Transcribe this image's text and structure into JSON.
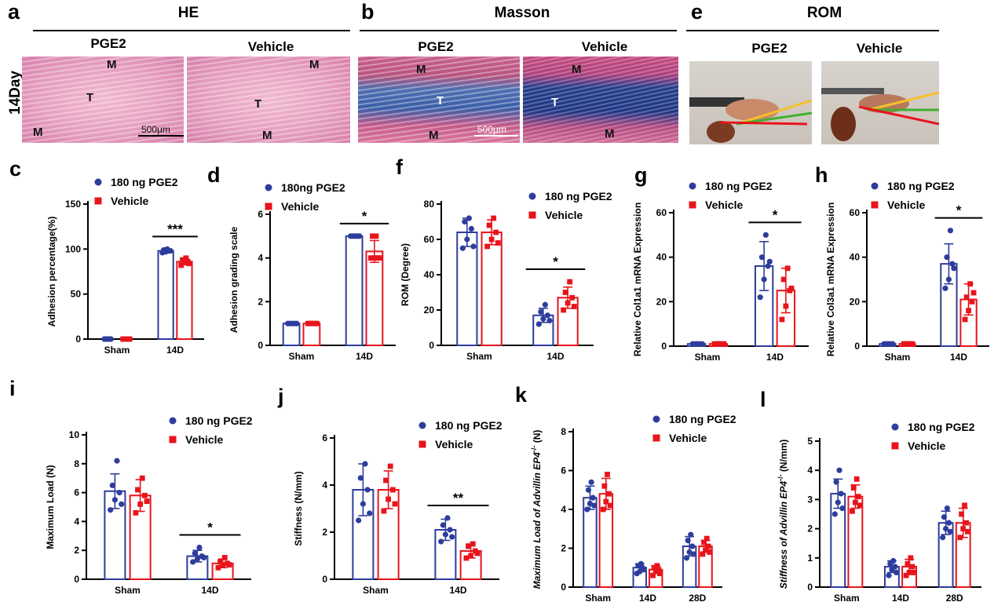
{
  "panels": {
    "a": {
      "label": "a",
      "title": "HE",
      "images": [
        "PGE2",
        "Vehicle"
      ],
      "scale_bar": "500μm"
    },
    "b": {
      "label": "b",
      "title": "Masson",
      "images": [
        "PGE2",
        "Vehicle"
      ],
      "scale_bar": "500μm"
    },
    "e": {
      "label": "e",
      "title": "ROM",
      "images": [
        "PGE2",
        "Vehicle"
      ]
    },
    "day_label": "14Day",
    "tissue_labels": {
      "muscle": "M",
      "tendon": "T"
    }
  },
  "colors": {
    "pge2": "#2e3d9c",
    "vehicle": "#e8141c",
    "axis": "#000000"
  },
  "chart_data": [
    {
      "id": "c",
      "label": "c",
      "type": "bar",
      "categories": [
        "Sham",
        "14D"
      ],
      "series": [
        {
          "name": "180 ng PGE2",
          "values": [
            0,
            98
          ],
          "sd": [
            0.5,
            2
          ],
          "points": [
            [
              0,
              0,
              0,
              0,
              0
            ],
            [
              96,
              97,
              98,
              99,
              100,
              98
            ]
          ]
        },
        {
          "name": "Vehicle",
          "values": [
            0,
            86
          ],
          "sd": [
            0.5,
            3.5
          ],
          "points": [
            [
              0,
              0,
              0,
              0,
              0
            ],
            [
              82,
              85,
              86,
              88,
              90,
              84
            ]
          ]
        }
      ],
      "ylabel": "Adhesion percentage(%)",
      "ylim": [
        0,
        150
      ],
      "yticks": [
        0,
        50,
        100,
        150
      ],
      "sig": [
        {
          "cat": 1,
          "text": "***"
        }
      ]
    },
    {
      "id": "d",
      "label": "d",
      "type": "bar",
      "categories": [
        "Sham",
        "14D"
      ],
      "series": [
        {
          "name": "180ng PGE2",
          "values": [
            1,
            5
          ],
          "sd": [
            0,
            0
          ],
          "points": [
            [
              1,
              1,
              1,
              1,
              1,
              1
            ],
            [
              5,
              5,
              5,
              5,
              5,
              5
            ]
          ]
        },
        {
          "name": "Vehicle",
          "values": [
            1,
            4.3
          ],
          "sd": [
            0,
            0.5
          ],
          "points": [
            [
              1,
              1,
              1,
              1,
              1,
              1
            ],
            [
              4,
              4,
              4,
              5,
              5,
              4
            ]
          ]
        }
      ],
      "ylabel": "Adhesion grading scale",
      "ylim": [
        0,
        6
      ],
      "yticks": [
        0,
        2,
        4,
        6
      ],
      "sig": [
        {
          "cat": 1,
          "text": "*"
        }
      ]
    },
    {
      "id": "f",
      "label": "f",
      "type": "bar",
      "categories": [
        "Sham",
        "14D"
      ],
      "series": [
        {
          "name": "180 ng PGE2",
          "values": [
            64,
            17
          ],
          "sd": [
            8,
            4
          ],
          "points": [
            [
              55,
              60,
              66,
              70,
              72,
              56
            ],
            [
              12,
              15,
              17,
              19,
              23,
              14
            ]
          ]
        },
        {
          "name": "Vehicle",
          "values": [
            64,
            27
          ],
          "sd": [
            7,
            6
          ],
          "points": [
            [
              56,
              60,
              64,
              68,
              72,
              58
            ],
            [
              20,
              24,
              27,
              30,
              36,
              22
            ]
          ]
        }
      ],
      "ylabel": "ROM (Degree)",
      "ylim": [
        0,
        80
      ],
      "yticks": [
        0,
        20,
        40,
        60,
        80
      ],
      "sig": [
        {
          "cat": 1,
          "text": "*"
        }
      ]
    },
    {
      "id": "g",
      "label": "g",
      "type": "bar",
      "categories": [
        "Sham",
        "14D"
      ],
      "series": [
        {
          "name": "180 ng PGE2",
          "values": [
            1,
            36
          ],
          "sd": [
            0.3,
            11
          ],
          "points": [
            [
              1,
              1,
              1,
              1,
              1,
              1
            ],
            [
              22,
              30,
              36,
              40,
              50,
              38
            ]
          ]
        },
        {
          "name": "Vehicle",
          "values": [
            1,
            25
          ],
          "sd": [
            0.3,
            10
          ],
          "points": [
            [
              1,
              1,
              1,
              1,
              1,
              1
            ],
            [
              12,
              18,
              25,
              30,
              35,
              26
            ]
          ]
        }
      ],
      "ylabel": "Relative Col1a1 mRNA Expression",
      "ylim": [
        0,
        60
      ],
      "yticks": [
        0,
        20,
        40,
        60
      ],
      "sig": [
        {
          "cat": 1,
          "text": "*"
        }
      ]
    },
    {
      "id": "h",
      "label": "h",
      "type": "bar",
      "categories": [
        "Sham",
        "14D"
      ],
      "series": [
        {
          "name": "180 ng PGE2",
          "values": [
            1,
            37
          ],
          "sd": [
            0.3,
            9
          ],
          "points": [
            [
              1,
              1,
              1,
              1,
              1,
              1
            ],
            [
              26,
              30,
              37,
              40,
              52,
              35
            ]
          ]
        },
        {
          "name": "Vehicle",
          "values": [
            1,
            21
          ],
          "sd": [
            0.3,
            7
          ],
          "points": [
            [
              1,
              1,
              1,
              1,
              1,
              1
            ],
            [
              12,
              16,
              20,
              22,
              28,
              24
            ]
          ]
        }
      ],
      "ylabel": "Relative Col3a1 mRNA Expression",
      "ylim": [
        0,
        60
      ],
      "yticks": [
        0,
        20,
        40,
        60
      ],
      "sig": [
        {
          "cat": 1,
          "text": "*"
        }
      ]
    },
    {
      "id": "i",
      "label": "i",
      "type": "bar",
      "categories": [
        "Sham",
        "14D"
      ],
      "series": [
        {
          "name": "180 ng PGE2",
          "values": [
            6.1,
            1.6
          ],
          "sd": [
            1.2,
            0.4
          ],
          "points": [
            [
              4.8,
              5.5,
              6.0,
              6.5,
              8.2,
              5.2
            ],
            [
              1.2,
              1.4,
              1.6,
              1.8,
              2.2,
              1.5
            ]
          ]
        },
        {
          "name": "Vehicle",
          "values": [
            5.8,
            1.1
          ],
          "sd": [
            1.1,
            0.3
          ],
          "points": [
            [
              4.6,
              5.2,
              5.8,
              6.2,
              7.0,
              5.4
            ],
            [
              0.8,
              1.0,
              1.1,
              1.2,
              1.5,
              1.0
            ]
          ]
        }
      ],
      "ylabel": "Maximum Load  (N)",
      "ylim": [
        0,
        10
      ],
      "yticks": [
        0,
        2,
        4,
        6,
        8,
        10
      ],
      "sig": [
        {
          "cat": 1,
          "text": "*"
        }
      ]
    },
    {
      "id": "j",
      "label": "j",
      "type": "bar",
      "categories": [
        "Sham",
        "14D"
      ],
      "series": [
        {
          "name": "180 ng PGE2",
          "values": [
            3.8,
            2.1
          ],
          "sd": [
            1.1,
            0.45
          ],
          "points": [
            [
              2.5,
              3.2,
              3.8,
              4.3,
              4.9,
              2.8
            ],
            [
              1.6,
              1.9,
              2.1,
              2.3,
              2.6,
              1.8
            ]
          ]
        },
        {
          "name": "Vehicle",
          "values": [
            3.8,
            1.2
          ],
          "sd": [
            0.8,
            0.3
          ],
          "points": [
            [
              2.9,
              3.4,
              3.8,
              4.2,
              4.8,
              3.2
            ],
            [
              0.9,
              1.0,
              1.2,
              1.4,
              1.5,
              1.1
            ]
          ]
        }
      ],
      "ylabel": "Stiffness  (N/mm)",
      "ylim": [
        0,
        6
      ],
      "yticks": [
        0,
        2,
        4,
        6
      ],
      "sig": [
        {
          "cat": 1,
          "text": "**"
        }
      ]
    },
    {
      "id": "k",
      "label": "k",
      "type": "bar",
      "categories": [
        "Sham",
        "14D",
        "28D"
      ],
      "series": [
        {
          "name": "180 ng PGE2",
          "values": [
            4.6,
            1.0,
            2.1
          ],
          "sd": [
            0.6,
            0.2,
            0.5
          ],
          "points": [
            [
              4.0,
              4.3,
              4.6,
              5.0,
              5.4,
              4.2
            ],
            [
              0.7,
              0.8,
              1.0,
              1.1,
              1.2,
              0.9
            ],
            [
              1.5,
              1.8,
              2.1,
              2.4,
              2.7,
              1.7
            ]
          ]
        },
        {
          "name": "Vehicle",
          "values": [
            4.8,
            0.9,
            2.1
          ],
          "sd": [
            0.8,
            0.2,
            0.3
          ],
          "points": [
            [
              4.0,
              4.4,
              4.8,
              5.2,
              5.8,
              4.2
            ],
            [
              0.6,
              0.8,
              0.9,
              1.0,
              1.1,
              0.7
            ],
            [
              1.7,
              1.9,
              2.1,
              2.3,
              2.5,
              1.8
            ]
          ]
        }
      ],
      "ylabel": "Maximum Load of Advillin EP4",
      "ylabel_suffix": "-/-",
      "ylabel_unit": " (N)",
      "ylim": [
        0,
        8
      ],
      "yticks": [
        0,
        2,
        4,
        6,
        8
      ],
      "sig": []
    },
    {
      "id": "l",
      "label": "l",
      "type": "bar",
      "categories": [
        "Sham",
        "14D",
        "28D"
      ],
      "series": [
        {
          "name": "180 ng PGE2",
          "values": [
            3.2,
            0.7,
            2.2
          ],
          "sd": [
            0.5,
            0.2,
            0.4
          ],
          "points": [
            [
              2.5,
              2.9,
              3.2,
              3.6,
              4.0,
              2.7
            ],
            [
              0.4,
              0.6,
              0.7,
              0.8,
              0.9,
              0.5
            ],
            [
              1.7,
              2.0,
              2.2,
              2.4,
              2.7,
              1.9
            ]
          ]
        },
        {
          "name": "Vehicle",
          "values": [
            3.1,
            0.7,
            2.2
          ],
          "sd": [
            0.4,
            0.25,
            0.5
          ],
          "points": [
            [
              2.6,
              2.9,
              3.1,
              3.4,
              3.7,
              2.8
            ],
            [
              0.4,
              0.5,
              0.7,
              0.8,
              1.0,
              0.5
            ],
            [
              1.7,
              2.0,
              2.2,
              2.5,
              2.8,
              1.9
            ]
          ]
        }
      ],
      "ylabel": "Stiffness of Advillin EP4",
      "ylabel_suffix": "-/-",
      "ylabel_unit": " (N/mm)",
      "ylim": [
        0,
        5
      ],
      "yticks": [
        0,
        1,
        2,
        3,
        4,
        5
      ],
      "sig": []
    }
  ]
}
